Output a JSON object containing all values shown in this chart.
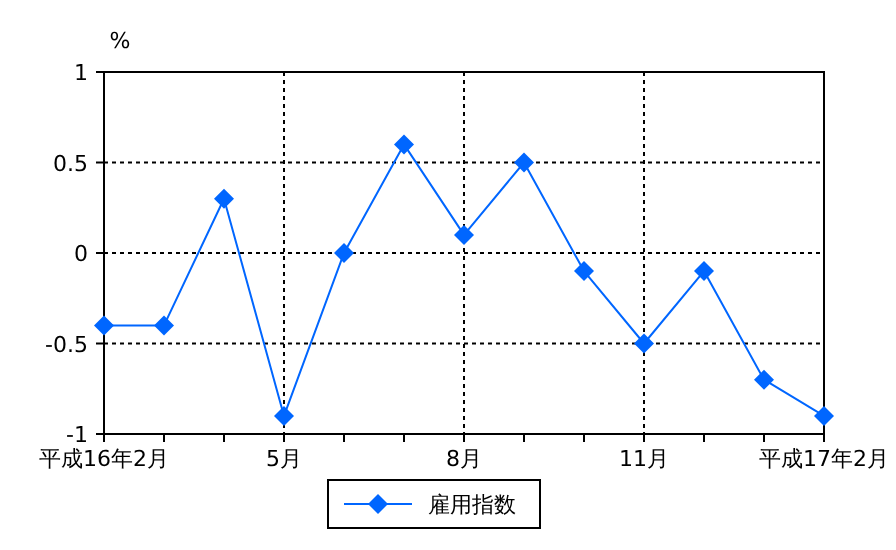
{
  "chart_data": {
    "type": "line",
    "ylabel": "%",
    "categories": [
      "平成16年2月",
      null,
      null,
      "5月",
      null,
      null,
      "8月",
      null,
      null,
      "11月",
      null,
      null,
      "平成17年2月"
    ],
    "series": [
      {
        "name": "雇用指数",
        "color": "#0066ff",
        "values": [
          -0.4,
          -0.4,
          0.3,
          -0.9,
          0.0,
          0.6,
          0.1,
          0.5,
          -0.1,
          -0.5,
          -0.1,
          -0.7,
          -0.9
        ]
      }
    ],
    "ylim": [
      -1,
      1
    ],
    "yticks": [
      1,
      0.5,
      0,
      -0.5,
      -1
    ],
    "grid": true,
    "legend": "bottom",
    "marker": "diamond",
    "line_style": "solid"
  }
}
